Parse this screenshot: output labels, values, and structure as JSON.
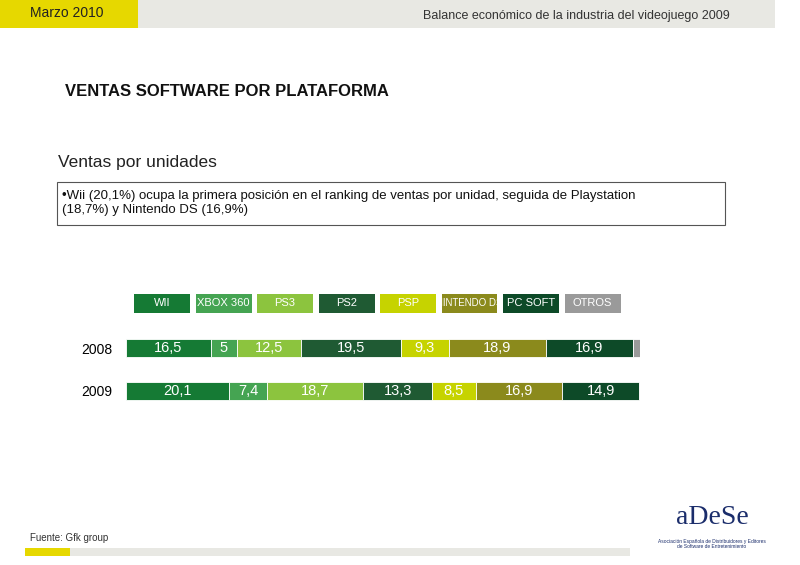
{
  "header": {
    "date": "Marzo 2010",
    "report": "Balance económico de la industria del videojuego 2009"
  },
  "title": "VENTAS SOFTWARE POR PLATAFORMA",
  "subtitle": "Ventas por unidades",
  "bullet": "•Wii (20,1%) ocupa la primera posición en el ranking de ventas por unidad, seguida de Playstation (18,7%) y Nintendo DS (16,9%)",
  "chart_data": {
    "type": "bar",
    "orientation": "horizontal",
    "stacked": true,
    "data_labels": true,
    "tick_labels": "y",
    "categories": [
      "2008",
      "2009"
    ],
    "series": [
      {
        "name": "WII",
        "color": "#157a34",
        "values": [
          16.5,
          20.1
        ],
        "value_labels": [
          "16,5",
          "20,1"
        ]
      },
      {
        "name": "XBOX 360",
        "color": "#45a452",
        "values": [
          5,
          7.4
        ],
        "value_labels": [
          "5",
          "7,4"
        ]
      },
      {
        "name": "PS3",
        "color": "#8cc43e",
        "values": [
          12.5,
          18.7
        ],
        "value_labels": [
          "12,5",
          "18,7"
        ]
      },
      {
        "name": "PS2",
        "color": "#1f5a33",
        "values": [
          19.5,
          13.3
        ],
        "value_labels": [
          "19,5",
          "13,3"
        ]
      },
      {
        "name": "PSP",
        "color": "#c6d300",
        "values": [
          9.3,
          8.5
        ],
        "value_labels": [
          "9,3",
          "8,5"
        ]
      },
      {
        "name": "NINTENDO DS",
        "color": "#8b8a1c",
        "values": [
          18.9,
          16.9
        ],
        "value_labels": [
          "18,9",
          "16,9"
        ]
      },
      {
        "name": "PC SOFT",
        "color": "#0d4a28",
        "values": [
          16.9,
          14.9
        ],
        "value_labels": [
          "16,9",
          "14,9"
        ]
      },
      {
        "name": "OTROS",
        "color": "#9a9a9a",
        "values": [
          1.4,
          0.2
        ],
        "value_labels": [
          null,
          null
        ]
      }
    ]
  },
  "footer": {
    "source": "Fuente: Gfk group",
    "logo": "aDeSe",
    "logo_caption": "Asociación Española de Distribuidores y Editores de Software de Entretenimiento"
  }
}
